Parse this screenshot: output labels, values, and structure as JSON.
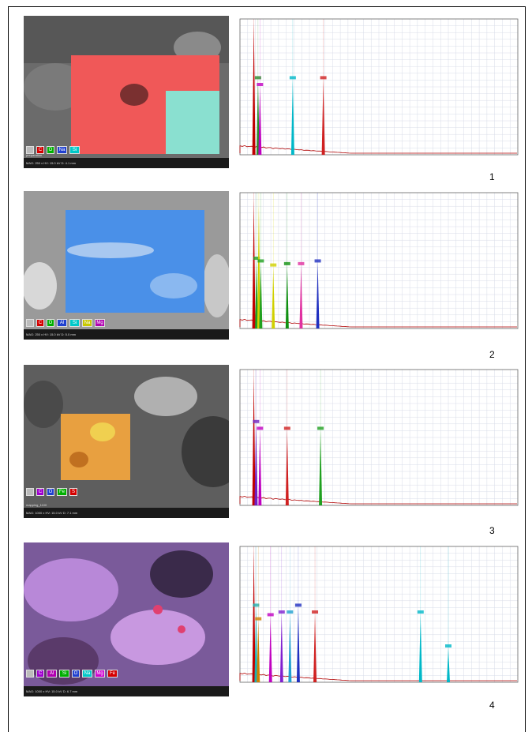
{
  "panels": [
    {
      "number": "1",
      "map_file": "preparation",
      "info": "MAG: 250 x   HV: 15.0 kV   D: 4.1 mm",
      "legend": [
        {
          "label": "",
          "color": "#ffffff"
        },
        {
          "label": "C",
          "color": "#d40000"
        },
        {
          "label": "O",
          "color": "#00b000"
        },
        {
          "label": "Na",
          "color": "#2040d0"
        },
        {
          "label": "Si",
          "color": "#00c8c8"
        }
      ],
      "map_color": "#f05050",
      "peaks": [
        {
          "x": 0.05,
          "h": 0.97,
          "color": "#c00000"
        },
        {
          "x": 0.065,
          "h": 0.55,
          "color": "#2a8a2a"
        },
        {
          "x": 0.072,
          "h": 0.5,
          "color": "#c000c0"
        },
        {
          "x": 0.19,
          "h": 0.55,
          "color": "#00b8c8"
        },
        {
          "x": 0.3,
          "h": 0.55,
          "color": "#d02020"
        }
      ]
    },
    {
      "number": "2",
      "map_file": "preparation",
      "info": "MAG: 250 x   HV: 15.0 kV   D: 5.0 mm",
      "legend": [
        {
          "label": "",
          "color": "#ffffff"
        },
        {
          "label": "C",
          "color": "#d40000"
        },
        {
          "label": "O",
          "color": "#00b000"
        },
        {
          "label": "Al",
          "color": "#2040d0"
        },
        {
          "label": "Si",
          "color": "#00c8c8"
        },
        {
          "label": "Na",
          "color": "#c8c800"
        },
        {
          "label": "Mg",
          "color": "#b000b0"
        }
      ],
      "map_color": "#3a8cf0",
      "peaks": [
        {
          "x": 0.05,
          "h": 0.95,
          "color": "#c00000"
        },
        {
          "x": 0.06,
          "h": 0.5,
          "color": "#20a020"
        },
        {
          "x": 0.068,
          "h": 0.9,
          "color": "#d0d000"
        },
        {
          "x": 0.075,
          "h": 0.48,
          "color": "#20a020"
        },
        {
          "x": 0.12,
          "h": 0.45,
          "color": "#d0d000"
        },
        {
          "x": 0.17,
          "h": 0.46,
          "color": "#109010"
        },
        {
          "x": 0.22,
          "h": 0.46,
          "color": "#e030a0"
        },
        {
          "x": 0.28,
          "h": 0.48,
          "color": "#2030c0"
        }
      ]
    },
    {
      "number": "3",
      "map_file": "mapping_1100",
      "info": "MAG: 1000 x   HV: 15.0 kV   D: 7.1 mm",
      "legend": [
        {
          "label": "",
          "color": "#ffffff"
        },
        {
          "label": "C",
          "color": "#a000d0"
        },
        {
          "label": "O",
          "color": "#2040d0"
        },
        {
          "label": "Fe",
          "color": "#00b000"
        },
        {
          "label": "S",
          "color": "#d40000"
        }
      ],
      "map_color": "#e09030",
      "peaks": [
        {
          "x": 0.05,
          "h": 0.95,
          "color": "#c00000"
        },
        {
          "x": 0.058,
          "h": 0.6,
          "color": "#7020c0"
        },
        {
          "x": 0.072,
          "h": 0.55,
          "color": "#c000c0"
        },
        {
          "x": 0.17,
          "h": 0.55,
          "color": "#d02020"
        },
        {
          "x": 0.29,
          "h": 0.55,
          "color": "#20a020"
        }
      ]
    },
    {
      "number": "4",
      "map_file": "",
      "info": "MAG: 1000 x   HV: 15.0 kV   D: 6.7 mm",
      "legend": [
        {
          "label": "",
          "color": "#ffffff"
        },
        {
          "label": "C",
          "color": "#a000d0"
        },
        {
          "label": "Al",
          "color": "#b000b0"
        },
        {
          "label": "Si",
          "color": "#00b000"
        },
        {
          "label": "O",
          "color": "#2040d0"
        },
        {
          "label": "Na",
          "color": "#00c8c8"
        },
        {
          "label": "Mg",
          "color": "#d000d0"
        },
        {
          "label": "Fe",
          "color": "#d40000"
        }
      ],
      "map_color": "#b070d8",
      "peaks": [
        {
          "x": 0.05,
          "h": 0.97,
          "color": "#c00000"
        },
        {
          "x": 0.058,
          "h": 0.55,
          "color": "#20b0b0"
        },
        {
          "x": 0.066,
          "h": 0.45,
          "color": "#d08000"
        },
        {
          "x": 0.11,
          "h": 0.48,
          "color": "#c000c0"
        },
        {
          "x": 0.15,
          "h": 0.5,
          "color": "#8020d0"
        },
        {
          "x": 0.18,
          "h": 0.5,
          "color": "#20a0d0"
        },
        {
          "x": 0.21,
          "h": 0.55,
          "color": "#2030c0"
        },
        {
          "x": 0.27,
          "h": 0.5,
          "color": "#d02020"
        },
        {
          "x": 0.65,
          "h": 0.5,
          "color": "#00b8c8"
        },
        {
          "x": 0.75,
          "h": 0.25,
          "color": "#00b8c8"
        }
      ]
    }
  ]
}
